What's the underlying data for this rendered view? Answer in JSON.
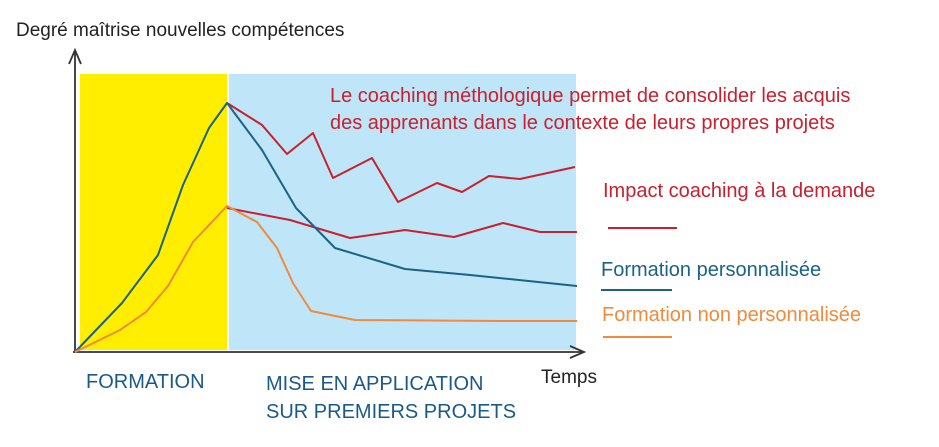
{
  "axes": {
    "y_label": "Degré maîtrise nouvelles compétences",
    "x_label": "Temps"
  },
  "phases": {
    "training": "FORMATION",
    "application_line1": "MISE EN APPLICATION",
    "application_line2": "SUR PREMIERS PROJETS"
  },
  "annotation": {
    "line1": "Le coaching méthologique permet de consolider les acquis",
    "line2": "des apprenants dans le contexte de leurs propres projets"
  },
  "legend": [
    {
      "id": "coaching",
      "label": "Impact coaching à la demande",
      "color": "#c8202e"
    },
    {
      "id": "personalized",
      "label": "Formation personnalisée",
      "color": "#1b6386"
    },
    {
      "id": "non_personalized",
      "label": "Formation non personnalisée",
      "color": "#f08a3c"
    }
  ],
  "colors": {
    "training_zone": "#ffee00",
    "application_zone": "#bfe6f8",
    "axis": "#333333",
    "annotation_text": "#c8202e",
    "phase_text": "#1a5a86"
  }
}
